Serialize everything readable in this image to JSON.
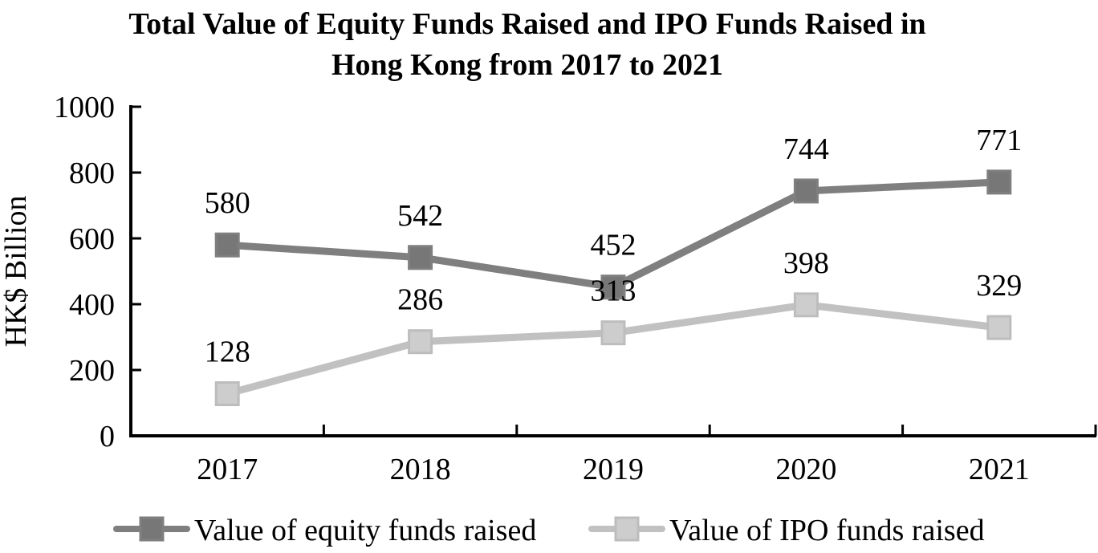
{
  "chart": {
    "title_line1": "Total Value of Equity Funds Raised and IPO Funds Raised in",
    "title_line2": "Hong Kong from 2017 to 2021"
  },
  "chart_data": {
    "type": "line",
    "title": "Total Value of Equity Funds Raised and IPO Funds Raised in Hong Kong from 2017 to 2021",
    "categories": [
      "2017",
      "2018",
      "2019",
      "2020",
      "2021"
    ],
    "series": [
      {
        "name": "Value of equity funds raised",
        "values": [
          580,
          542,
          452,
          744,
          771
        ],
        "line_color": "#7f7f7f",
        "marker_fill": "#777777",
        "marker_stroke": "#7f7f7f"
      },
      {
        "name": "Value of IPO funds raised",
        "values": [
          128,
          286,
          313,
          398,
          329
        ],
        "line_color": "#c1c1c1",
        "marker_fill": "#cdcdcd",
        "marker_stroke": "#bdbdbd"
      }
    ],
    "xlabel": "",
    "ylabel": "HK$ Billion",
    "ylim": [
      0,
      1000
    ],
    "y_ticks": [
      0,
      200,
      400,
      600,
      800,
      1000
    ],
    "grid": false,
    "data_labels": true,
    "marker_shape": "square",
    "legend_position": "bottom",
    "axis_color": "#000000",
    "text_color": "#000000",
    "background_color": "#ffffff"
  }
}
